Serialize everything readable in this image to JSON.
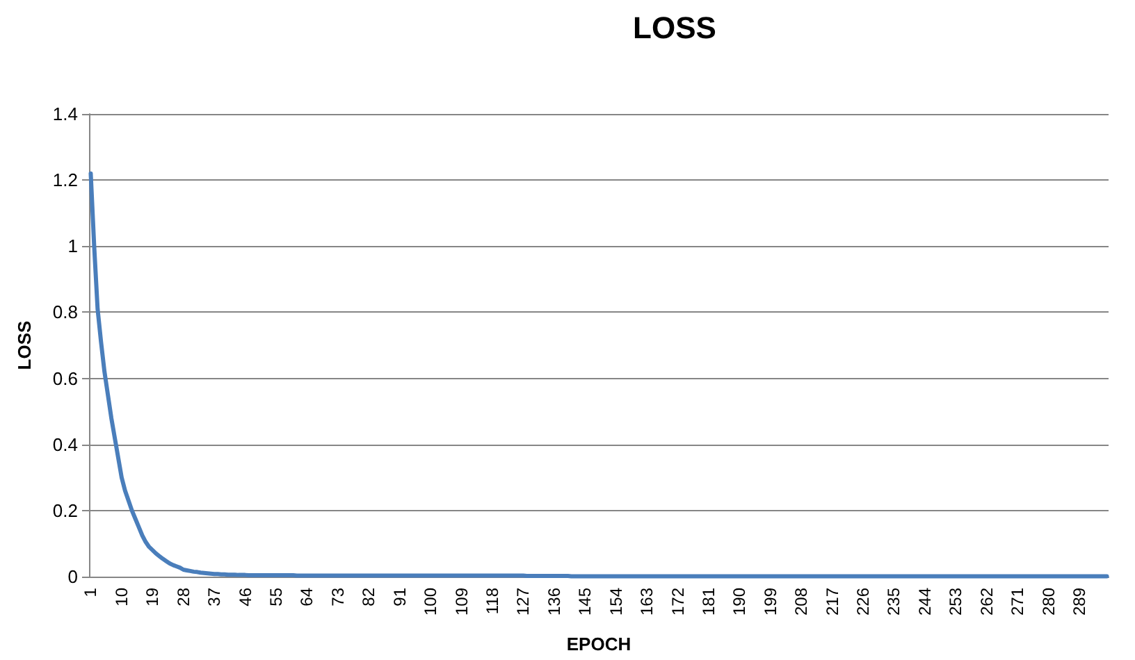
{
  "chart_data": {
    "type": "line",
    "title": "LOSS",
    "xlabel": "EPOCH",
    "ylabel": "LOSS",
    "categories": [
      "1",
      null,
      null,
      null,
      null,
      null,
      null,
      null,
      null,
      "10",
      null,
      null,
      null,
      null,
      null,
      null,
      null,
      null,
      "19",
      null,
      null,
      null,
      null,
      null,
      null,
      null,
      null,
      "28",
      null,
      null,
      null,
      null,
      null,
      null,
      null,
      null,
      "37",
      null,
      null,
      null,
      null,
      null,
      null,
      null,
      null,
      "46",
      null,
      null,
      null,
      null,
      null,
      null,
      null,
      null,
      "55",
      null,
      null,
      null,
      null,
      null,
      null,
      null,
      null,
      "64",
      null,
      null,
      null,
      null,
      null,
      null,
      null,
      null,
      "73",
      null,
      null,
      null,
      null,
      null,
      null,
      null,
      null,
      "82",
      null,
      null,
      null,
      null,
      null,
      null,
      null,
      null,
      "91",
      null,
      null,
      null,
      null,
      null,
      null,
      null,
      null,
      "100",
      null,
      null,
      null,
      null,
      null,
      null,
      null,
      null,
      "109",
      null,
      null,
      null,
      null,
      null,
      null,
      null,
      null,
      "118",
      null,
      null,
      null,
      null,
      null,
      null,
      null,
      null,
      "127",
      null,
      null,
      null,
      null,
      null,
      null,
      null,
      null,
      "136",
      null,
      null,
      null,
      null,
      null,
      null,
      null,
      null,
      "145",
      null,
      null,
      null,
      null,
      null,
      null,
      null,
      null,
      "154",
      null,
      null,
      null,
      null,
      null,
      null,
      null,
      null,
      "163",
      null,
      null,
      null,
      null,
      null,
      null,
      null,
      null,
      "172",
      null,
      null,
      null,
      null,
      null,
      null,
      null,
      null,
      "181",
      null,
      null,
      null,
      null,
      null,
      null,
      null,
      null,
      "190",
      null,
      null,
      null,
      null,
      null,
      null,
      null,
      null,
      "199",
      null,
      null,
      null,
      null,
      null,
      null,
      null,
      null,
      "208",
      null,
      null,
      null,
      null,
      null,
      null,
      null,
      null,
      "217",
      null,
      null,
      null,
      null,
      null,
      null,
      null,
      null,
      "226",
      null,
      null,
      null,
      null,
      null,
      null,
      null,
      null,
      "235",
      null,
      null,
      null,
      null,
      null,
      null,
      null,
      null,
      "244",
      null,
      null,
      null,
      null,
      null,
      null,
      null,
      null,
      "253",
      null,
      null,
      null,
      null,
      null,
      null,
      null,
      null,
      "262",
      null,
      null,
      null,
      null,
      null,
      null,
      null,
      null,
      "271",
      null,
      null,
      null,
      null,
      null,
      null,
      null,
      null,
      "280",
      null,
      null,
      null,
      null,
      null,
      null,
      null,
      null,
      "289",
      null,
      null,
      null,
      null,
      null,
      null,
      null,
      null
    ],
    "series": [
      {
        "color": "#4a7ebb",
        "values": [
          1.22,
          1.0,
          0.81,
          0.71,
          0.62,
          0.55,
          0.48,
          0.42,
          0.36,
          0.3,
          0.26,
          0.23,
          0.2,
          0.175,
          0.15,
          0.125,
          0.105,
          0.09,
          0.08,
          0.07,
          0.062,
          0.054,
          0.047,
          0.04,
          0.035,
          0.031,
          0.027,
          0.021,
          0.019,
          0.017,
          0.015,
          0.014,
          0.012,
          0.011,
          0.01,
          0.009,
          0.008,
          0.008,
          0.007,
          0.007,
          0.006,
          0.006,
          0.006,
          0.005,
          0.005,
          0.005,
          0.004,
          0.004,
          0.004,
          0.004,
          0.004,
          0.004,
          0.004,
          0.004,
          0.004,
          0.004,
          0.004,
          0.004,
          0.004,
          0.004,
          0.003,
          0.003,
          0.003,
          0.003,
          0.003,
          0.003,
          0.003,
          0.003,
          0.003,
          0.003,
          0.003,
          0.003,
          0.003,
          0.003,
          0.003,
          0.003,
          0.003,
          0.003,
          0.003,
          0.003,
          0.003,
          0.003,
          0.003,
          0.003,
          0.003,
          0.003,
          0.003,
          0.003,
          0.003,
          0.003,
          0.003,
          0.003,
          0.003,
          0.003,
          0.003,
          0.003,
          0.003,
          0.003,
          0.003,
          0.003,
          0.003,
          0.003,
          0.003,
          0.003,
          0.003,
          0.003,
          0.003,
          0.003,
          0.003,
          0.003,
          0.003,
          0.003,
          0.003,
          0.003,
          0.003,
          0.003,
          0.003,
          0.003,
          0.003,
          0.003,
          0.003,
          0.003,
          0.003,
          0.003,
          0.003,
          0.003,
          0.003,
          0.002,
          0.002,
          0.002,
          0.002,
          0.002,
          0.002,
          0.002,
          0.002,
          0.002,
          0.002,
          0.002,
          0.002,
          0.002,
          0.001,
          0.001,
          0.001,
          0.001,
          0.001,
          0.001,
          0.001,
          0.001,
          0.001,
          0.001,
          0.001,
          0.001,
          0.001,
          0.001,
          0.001,
          0.001,
          0.001,
          0.001,
          0.001,
          0.001,
          0.001,
          0.001,
          0.001,
          0.001,
          0.001,
          0.001,
          0.001,
          0.001,
          0.001,
          0.001,
          0.001,
          0.001,
          0.001,
          0.001,
          0.001,
          0.001,
          0.001,
          0.001,
          0.001,
          0.001,
          0.001,
          0.001,
          0.001,
          0.001,
          0.001,
          0.001,
          0.001,
          0.001,
          0.001,
          0.001,
          0.001,
          0.001,
          0.001,
          0.001,
          0.001,
          0.001,
          0.001,
          0.001,
          0.001,
          0.001,
          0.001,
          0.001,
          0.001,
          0.001,
          0.001,
          0.001,
          0.001,
          0.001,
          0.001,
          0.001,
          0.001,
          0.001,
          0.001,
          0.001,
          0.001,
          0.001,
          0.001,
          0.001,
          0.001,
          0.001,
          0.001,
          0.001,
          0.001,
          0.001,
          0.001,
          0.001,
          0.001,
          0.001,
          0.001,
          0.001,
          0.001,
          0.001,
          0.001,
          0.001,
          0.001,
          0.001,
          0.001,
          0.001,
          0.001,
          0.001,
          0.001,
          0.001,
          0.001,
          0.001,
          0.001,
          0.001,
          0.001,
          0.001,
          0.001,
          0.001,
          0.001,
          0.001,
          0.001,
          0.001,
          0.001,
          0.001,
          0.001,
          0.001,
          0.001,
          0.001,
          0.001,
          0.001,
          0.001,
          0.001,
          0.001,
          0.001,
          0.001,
          0.001,
          0.001,
          0.001,
          0.001,
          0.001,
          0.001,
          0.001,
          0.001,
          0.001,
          0.001,
          0.001,
          0.001,
          0.001,
          0.001,
          0.001,
          0.001,
          0.001,
          0.001,
          0.001,
          0.001,
          0.001,
          0.001,
          0.001,
          0.001,
          0.001,
          0.001,
          0.001,
          0.001,
          0.001,
          0.001
        ]
      }
    ],
    "ylim": [
      0,
      1.4
    ],
    "yticks": [
      0,
      0.2,
      0.4,
      0.6,
      0.8,
      1,
      1.2,
      1.4
    ],
    "grid": "y",
    "marker": "none",
    "line_style": "solid"
  }
}
